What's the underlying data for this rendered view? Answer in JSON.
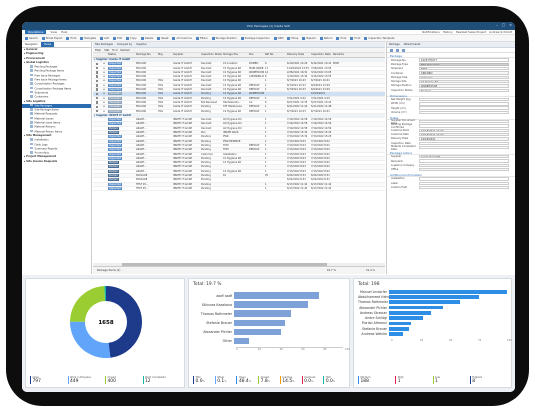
{
  "window": {
    "title": "Pick Packages (1) Inside SAP"
  },
  "menu": {
    "items": [
      "Operations",
      "View",
      "Help"
    ],
    "right_items": [
      "Notifications",
      "History",
      "Headset Sales Project",
      "Andrew Schmidt"
    ]
  },
  "toolbar": {
    "items": [
      "Search",
      "Email Export",
      "Print",
      "Navigate",
      "Add",
      "Edit",
      "Copy",
      "Delete",
      "Reset",
      "All Columns",
      "Filters",
      "Storage Position",
      "Package Inspection",
      "GRN",
      "Move",
      "Repack",
      "Return",
      "Print",
      "Print",
      "Inspection Template"
    ]
  },
  "left": {
    "tabs": [
      "Navigator",
      "Views"
    ],
    "nodes": [
      {
        "label": "General",
        "type": "g"
      },
      {
        "label": "Engineering",
        "type": "g"
      },
      {
        "label": "Procurement",
        "type": "g"
      },
      {
        "label": "Global Logistics",
        "type": "g"
      },
      {
        "label": "Pending Packages",
        "type": "c"
      },
      {
        "label": "Pending Package Items",
        "type": "c"
      },
      {
        "label": "Free Issue Packages",
        "type": "c"
      },
      {
        "label": "Free Issue Package Items",
        "type": "c"
      },
      {
        "label": "Consolidation Packages",
        "type": "c"
      },
      {
        "label": "Consolidation Package Items",
        "type": "c"
      },
      {
        "label": "Shipments",
        "type": "c"
      },
      {
        "label": "Containers",
        "type": "c"
      },
      {
        "label": "Site Logistics",
        "type": "g"
      },
      {
        "label": "Site Packages",
        "type": "s"
      },
      {
        "label": "Site Package Items",
        "type": "c"
      },
      {
        "label": "Material Requests",
        "type": "c"
      },
      {
        "label": "Material Issues",
        "type": "c"
      },
      {
        "label": "Material Issue Items",
        "type": "c"
      },
      {
        "label": "Material Returns",
        "type": "c"
      },
      {
        "label": "Material Return Items",
        "type": "c"
      },
      {
        "label": "Site Management",
        "type": "g"
      },
      {
        "label": "Installation",
        "type": "c"
      },
      {
        "label": "Daily Logs",
        "type": "c"
      },
      {
        "label": "Summary Reports",
        "type": "c"
      },
      {
        "label": "Accounting",
        "type": "c"
      },
      {
        "label": "Project Management",
        "type": "g"
      },
      {
        "label": "Site Invoice Requests",
        "type": "g"
      }
    ]
  },
  "grid": {
    "title": "Site Packages",
    "tabs": [
      "Grouped by",
      "Supplier"
    ],
    "tools": [
      "Filter",
      "Stat",
      "Find",
      "Refresh"
    ],
    "headers": [
      "",
      "",
      "Status",
      "Package No.",
      "Pkg",
      "Supplier",
      "Inspection Status",
      "Storage Pos.",
      "Pos.",
      "Ref No.",
      "Delivery Date",
      "Inspection Date",
      "Remarks"
    ],
    "rows": [
      {
        "type": "grp",
        "text": "Supplier: Inside IT GmbH"
      },
      {
        "type": "row",
        "c": [
          "☐",
          "▭",
          "Inspected",
          "850.000",
          "",
          "Inside IT GmbH",
          "Decoreit",
          "C3 Location",
          "DOMED",
          "9",
          "6/10/2021 14:29",
          "6/14/2021 10:41",
          "MICE"
        ]
      },
      {
        "type": "row",
        "c": [
          "☐",
          "▭",
          "Inspected",
          "850.000",
          "",
          "Inside IT GmbH",
          "Decoreit",
          "C1 Hygiene Rd",
          "MAIN WARE…",
          "11",
          "11/26/2022 13:33",
          "7/28/2021 13:55",
          ""
        ]
      },
      {
        "type": "row",
        "c": [
          "☐",
          "▭",
          "Inspected",
          "850.000",
          "",
          "Inside IT GmbH",
          "Decoreit",
          "C1 Hygiene Rd",
          "WAREHOUSE",
          "12",
          "2/28/2021 16:31",
          "3/14/2022 13:05",
          ""
        ]
      },
      {
        "type": "row",
        "c": [
          "☐",
          "▭",
          "Inspected",
          "850.000",
          "",
          "Inside IT GmbH",
          "Decoreit",
          "C1 Hygiene Rd",
          "CLEANING RE…",
          "8",
          "3/10/2021 15:44",
          "3/14/2022 13:55",
          ""
        ]
      },
      {
        "type": "row",
        "c": [
          "☐",
          "▭",
          "Inspected",
          "850.000",
          "HOL",
          "Inside IT GmbH",
          "Decoreit",
          "C1 Hygiene Rd",
          "",
          "1",
          "6/7/2021 10:23",
          "6/7/2021 10:41",
          ""
        ]
      },
      {
        "type": "row",
        "c": [
          "☐",
          "▭",
          "Inspected",
          "850.000",
          "HOL",
          "Inside IT GmbH",
          "Decoreit",
          "C1 Hygiene Rd",
          "DEFAULT",
          "1",
          "6/7/2021 10:23",
          "6/9/2021 13:49",
          ""
        ]
      },
      {
        "type": "row",
        "c": [
          "☐",
          "▭",
          "Inspected",
          "850.000",
          "HOL",
          "Inside IT GmbH",
          "Decoreit",
          "C1 Hygiene Rd",
          "DEFAULT",
          "1",
          "6/7/2021 10:23",
          "6/9/2021 13:49",
          ""
        ]
      },
      {
        "type": "sel",
        "c": [
          "☐",
          "▭",
          "Unloaded",
          "850.000",
          "HOL",
          "Inside IT GmbH",
          "Pending",
          "C1 Hygiene Rd",
          "WAREHOUSE",
          "",
          "",
          "10/18/2021",
          ""
        ]
      },
      {
        "type": "row",
        "c": [
          "☐",
          "▭",
          "Unloaded",
          "850.000",
          "HOL",
          "Inside IT GmbH",
          "Pending",
          "C1 Hygiene Rd",
          "DEFAULT",
          "1",
          "7/21/2021 9:22",
          "7/21/2021 9:15",
          ""
        ]
      },
      {
        "type": "row",
        "c": [
          "☐",
          "▭",
          "Unloaded",
          "850.000",
          "HOL",
          "Inside IT GmbH",
          "Not Received",
          "Hardware Ro…",
          "A1",
          "6",
          "6/27/2021 12:33",
          "5/27/2021 13:22",
          ""
        ]
      },
      {
        "type": "row",
        "c": [
          "☐",
          "▭",
          "Unloaded",
          "850.000",
          "HOL",
          "Inside IT GmbH",
          "Pending",
          "STF Warehouse",
          "DEFAULT",
          "1",
          "6/21/2022 11:44",
          "5/21/2022 11:48",
          ""
        ]
      },
      {
        "type": "row",
        "c": [
          "☐",
          "▭",
          "Unloaded",
          "850.000",
          "HOL",
          "Inside IT GmbH",
          "Pending",
          "C1 Hygiene Rd",
          "DEFAULT",
          "1",
          "6/7/2021 10:23",
          "6/7/2021 10:41",
          ""
        ]
      },
      {
        "type": "grp",
        "text": "Supplier: INSITE IT GmbH"
      },
      {
        "type": "row",
        "c": [
          "",
          "",
          "Inspected",
          "A6GRT…",
          "",
          "INSITE IT GmbH",
          "Decoreit",
          "AQ Hygiene Rd",
          "",
          "1",
          "7/19/2022 14:58",
          "7/19/2022 14:56",
          ""
        ]
      },
      {
        "type": "row",
        "c": [
          "",
          "",
          "Inspected",
          "A6GRT…",
          "",
          "INSITE IT GmbH",
          "Decoreit",
          "AQ Hygiene Rd",
          "",
          "1",
          "7/19/2022 14:58",
          "7/19/2022 14:56",
          ""
        ]
      },
      {
        "type": "row",
        "c": [
          "",
          "",
          "Packed",
          "A6GRT…",
          "",
          "INSITE IT GmbH",
          "Decoreit",
          "AQ Hygiene Rd",
          "",
          "1",
          "7/19/2022 14:58",
          "7/19/2022 14:56",
          ""
        ]
      },
      {
        "type": "row",
        "c": [
          "",
          "",
          "Packed",
          "A6GRT…",
          "",
          "INSITE IT GmbH",
          "Run",
          "INSIDE RACK",
          "",
          "1",
          "7/13/2022 15:32",
          "7/13/2022 15:25",
          ""
        ]
      },
      {
        "type": "row",
        "c": [
          "",
          "",
          "Inspected",
          "A6GRT…",
          "",
          "INSITE IT GmbH",
          "Pending",
          "PWR",
          "",
          "1",
          "7/13/2022 15:32",
          "7/13/2022 15:25",
          ""
        ]
      },
      {
        "type": "row",
        "c": [
          "",
          "",
          "Inspected",
          "A6GRT…",
          "",
          "INSITE IT GmbH",
          "Pending",
          "PWR RESERVE",
          "",
          "1",
          "7/13/2022 8:03",
          "7/13/2022 8:02",
          ""
        ]
      },
      {
        "type": "row",
        "c": [
          "",
          "",
          "Inspected",
          "A6GRT…",
          "",
          "INSITE IT GmbH",
          "Pending",
          "TDM",
          "DEFAULT",
          "1",
          "7/13/2022 8:03",
          "7/13/2022 8:02",
          ""
        ]
      },
      {
        "type": "row",
        "c": [
          "",
          "",
          "Inspected",
          "A6GRT…",
          "",
          "INSITE IT GmbH",
          "Pending",
          "TDM",
          "DEFAULT",
          "1",
          "7/13/2022 8:03",
          "7/13/2022 8:02",
          ""
        ]
      },
      {
        "type": "row",
        "c": [
          "",
          "",
          "Inspected",
          "A6GRT…",
          "",
          "INSITE IT GmbH",
          "Customer",
          "Installation",
          "",
          "1",
          "7/13/2022 8:03",
          "7/13/2022 8:02",
          ""
        ]
      },
      {
        "type": "row",
        "c": [
          "",
          "",
          "Inspected",
          "A6GRT…",
          "",
          "INSITE IT GmbH",
          "Pending",
          "C1 Hygiene Rd",
          "",
          "1",
          "7/13/2022 8:03",
          "7/13/2022 8:02",
          ""
        ]
      },
      {
        "type": "row",
        "c": [
          "",
          "",
          "Packed",
          "A6GRT…",
          "",
          "INSITE IT GmbH",
          "Pending",
          "C1 Hygiene Rd",
          "",
          "1",
          "7/13/2022 8:03",
          "7/13/2022 8:02",
          ""
        ]
      },
      {
        "type": "row",
        "c": [
          "",
          "",
          "Packed",
          "A6GRT…",
          "",
          "INSITE IT GmbH",
          "Pending",
          "",
          "",
          "1",
          "7/13/2022 8:03",
          "7/13/2022 8:02",
          ""
        ]
      },
      {
        "type": "row",
        "c": [
          "",
          "",
          "Packed",
          "A6GRT…",
          "",
          "INSITE IT GmbH",
          "Pending",
          "C1 Hygiene Rd",
          "",
          "1",
          "7/13/2022 8:03",
          "7/13/2022 8:02",
          ""
        ]
      },
      {
        "type": "row",
        "c": [
          "",
          "",
          "Packed",
          "PACKAGE",
          "",
          "INSITE IT GmbH",
          "Pending",
          "10",
          "",
          "25",
          "6/24/2022 8:33",
          "6/24/2022 8:31",
          ""
        ]
      },
      {
        "type": "row",
        "c": [
          "",
          "",
          "Packed",
          "PACKAGE",
          "",
          "INSITE IT GmbH",
          "Pending",
          "",
          "",
          "",
          "6/24/2022 8:33",
          "6/24/2022 8:31",
          ""
        ]
      },
      {
        "type": "row",
        "c": [
          "",
          "",
          "Inspected",
          "TEST 45…",
          "",
          "INSITE IT GmbH",
          "Pending",
          "",
          "",
          "1",
          "6/17/2022 11:42",
          "6/17/2022 11:42",
          ""
        ]
      },
      {
        "type": "row",
        "c": [
          "",
          "",
          "Inspected",
          "TEST 45…",
          "",
          "INSITE IT GmbH",
          "Pending",
          "",
          "",
          "1",
          "6/17/2022 11:42",
          "6/17/2022 11:42",
          ""
        ]
      }
    ],
    "total_left": "19.7 %",
    "total_right": "31.4 %",
    "footer": "Package Items (2)"
  },
  "right": {
    "title": "Package",
    "tabs": [
      "Package",
      "Attachments"
    ],
    "sections": [
      {
        "title": "Package",
        "fields": [
          {
            "l": "Package No.",
            "v": "1025775077",
            "s": "n"
          },
          {
            "l": "Package Type",
            "v": "HOL Delivered",
            "s": "hl"
          },
          {
            "l": "Shipment",
            "v": "ETT3",
            "s": "n"
          },
          {
            "l": "Container",
            "v": "CIRCORO",
            "s": "dd"
          },
          {
            "l": "Package Size",
            "v": "Unknown",
            "s": "dd"
          },
          {
            "l": "Storage Site",
            "v": "C1 Hygien Rd",
            "s": "dd"
          },
          {
            "l": "Storage Position",
            "v": "WAREHOUSE",
            "s": "dd"
          },
          {
            "l": "Inspection Status",
            "v": "Pending",
            "s": "n"
          }
        ]
      },
      {
        "title": "Dimensions",
        "fields": [
          {
            "l": "Net Weight (kg)",
            "v": "",
            "s": "n"
          },
          {
            "l": "Width (cm)",
            "v": "",
            "s": "n"
          },
          {
            "l": "Height (cm)",
            "v": "",
            "s": "n"
          },
          {
            "l": "Volume (m³)",
            "v": "",
            "s": "n"
          }
        ]
      },
      {
        "title": "Dates",
        "fields": [
          {
            "l": "Supplier Document Date",
            "v": "",
            "s": "n"
          },
          {
            "l": "Pending Package Confirmed",
            "v": "",
            "s": "n"
          },
          {
            "l": "Customs Start",
            "v": "10/18/2021 12:00",
            "s": "n"
          },
          {
            "l": "Customs Date",
            "v": "10/18/2021 12:00",
            "s": "dd"
          },
          {
            "l": "Delivery Date",
            "v": "10/18/2021",
            "s": "dd"
          },
          {
            "l": "Inspection Date",
            "v": "",
            "s": "n"
          },
          {
            "l": "Material Completed Date",
            "v": "",
            "s": "n"
          }
        ]
      },
      {
        "title": "Package Actors",
        "fields": [
          {
            "l": "Supplier",
            "v": "Inside IT GmbH",
            "s": "dd"
          },
          {
            "l": "Recipient",
            "v": "",
            "s": "n"
          },
          {
            "l": "Logistics Company",
            "v": "",
            "s": "dd"
          },
          {
            "l": "Office",
            "v": "",
            "s": "dd"
          }
        ]
      },
      {
        "title": "Additional Information",
        "fields": [
          {
            "l": "Installation",
            "v": "",
            "s": "n"
          },
          {
            "l": "Label",
            "v": "",
            "s": "n"
          },
          {
            "l": "Custom Field",
            "v": "",
            "s": "n"
          }
        ]
      }
    ]
  },
  "charts": {
    "donut": {
      "total": "1658",
      "legend": [
        {
          "name": "Open",
          "value": "797",
          "pct": "",
          "color": "#1e3a8a"
        },
        {
          "name": "Work in Progress",
          "value": "449",
          "pct": "",
          "color": "#60a5fa"
        },
        {
          "name": "Closed",
          "value": "400",
          "pct": "",
          "color": "#9acd32"
        },
        {
          "name": "Work Completed",
          "value": "12",
          "pct": "",
          "color": "#14b8a6"
        }
      ]
    },
    "bars": {
      "title": "Total: 19.7 %",
      "xticks": [
        "0",
        "20",
        "40",
        "60",
        "80",
        "100"
      ],
      "legend": [
        {
          "name": "TKO",
          "value": "0.0",
          "pct": "%"
        },
        {
          "name": "Other",
          "value": "0.1",
          "pct": "%"
        },
        {
          "name": "Open",
          "value": "48.4",
          "pct": "%"
        },
        {
          "name": "Closed",
          "value": "7.8",
          "pct": "%"
        },
        {
          "name": "Inactive",
          "value": "14.5",
          "pct": "%"
        },
        {
          "name": "Inactive1",
          "value": "0.0",
          "pct": "%"
        },
        {
          "name": "TKO",
          "value": "0.0",
          "pct": "%"
        }
      ]
    },
    "people": {
      "title": "Total: 198",
      "xticks": [
        "0",
        "25",
        "50",
        "75",
        "100"
      ],
      "legend": [
        {
          "name": "Medium",
          "value": "188"
        },
        {
          "name": "High",
          "value": "1"
        },
        {
          "name": "Low",
          "value": "1"
        },
        {
          "name": "Highest",
          "value": "8"
        }
      ]
    }
  },
  "chart_data": [
    {
      "type": "pie",
      "title": "",
      "values": [
        797,
        449,
        400,
        12
      ],
      "categories": [
        "Open",
        "Work in Progress",
        "Closed",
        "Work Completed"
      ],
      "center_label": "1658"
    },
    {
      "type": "bar",
      "title": "Total: 19.7 %",
      "categories": [
        "aodf aodf",
        "Stilnuea Kazakova",
        "Thomas Rothmeier",
        "Stefanie Brauer",
        "Alexander Pichler",
        "Other"
      ],
      "values": [
        78,
        68,
        52,
        47,
        43,
        14
      ],
      "series": [
        {
          "values": [
            78,
            68,
            52,
            47,
            43,
            14
          ],
          "color": "#7ea1d7"
        }
      ],
      "xlim": [
        0,
        100
      ]
    },
    {
      "type": "bar",
      "title": "Total: 198",
      "categories": [
        "Manuel Lindorfer",
        "Abdulhameed Hamdon",
        "Thomas Rothmeier",
        "Alexander Pichler",
        "Andreas Strasser",
        "Andre Schlögl",
        "Florian Altmann",
        "Stefanie Brauer",
        "Andreas Weinke"
      ],
      "values": [
        100,
        76,
        60,
        46,
        36,
        29,
        19,
        17,
        12
      ],
      "xlim": [
        0,
        100
      ]
    }
  ]
}
